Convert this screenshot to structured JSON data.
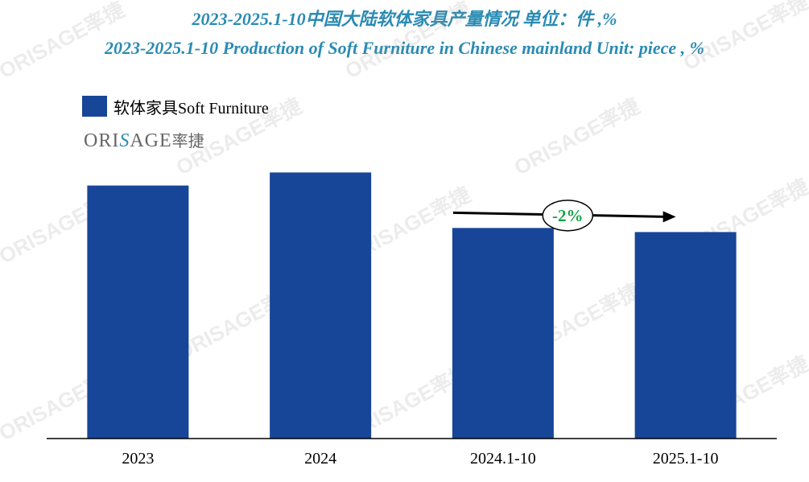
{
  "title": {
    "line1": "2023-2025.1-10中国大陆软体家具产量情况  单位：件 ,%",
    "line2": "2023-2025.1-10 Production of Soft Furniture in Chinese mainland Unit: piece , %"
  },
  "logo": {
    "part1": "ORI",
    "part2": "S",
    "part3": "AGE",
    "cn": "率捷"
  },
  "watermark_text": "ORISAGE率捷",
  "colors": {
    "bar": "#174598",
    "title": "#2a8bb3",
    "annotation_text": "#1aa34a"
  },
  "chart_data": {
    "type": "bar",
    "categories": [
      "2023",
      "2024",
      "2024.1-10",
      "2025.1-10"
    ],
    "series": [
      {
        "name": "软体家具Soft Furniture",
        "values": [
          310,
          326,
          258,
          253
        ]
      }
    ],
    "ylim": [
      0,
      350
    ],
    "grid": false,
    "legend_position": "top-left",
    "annotation": {
      "text": "-2%",
      "from_category": "2024.1-10",
      "to_category": "2025.1-10"
    }
  }
}
